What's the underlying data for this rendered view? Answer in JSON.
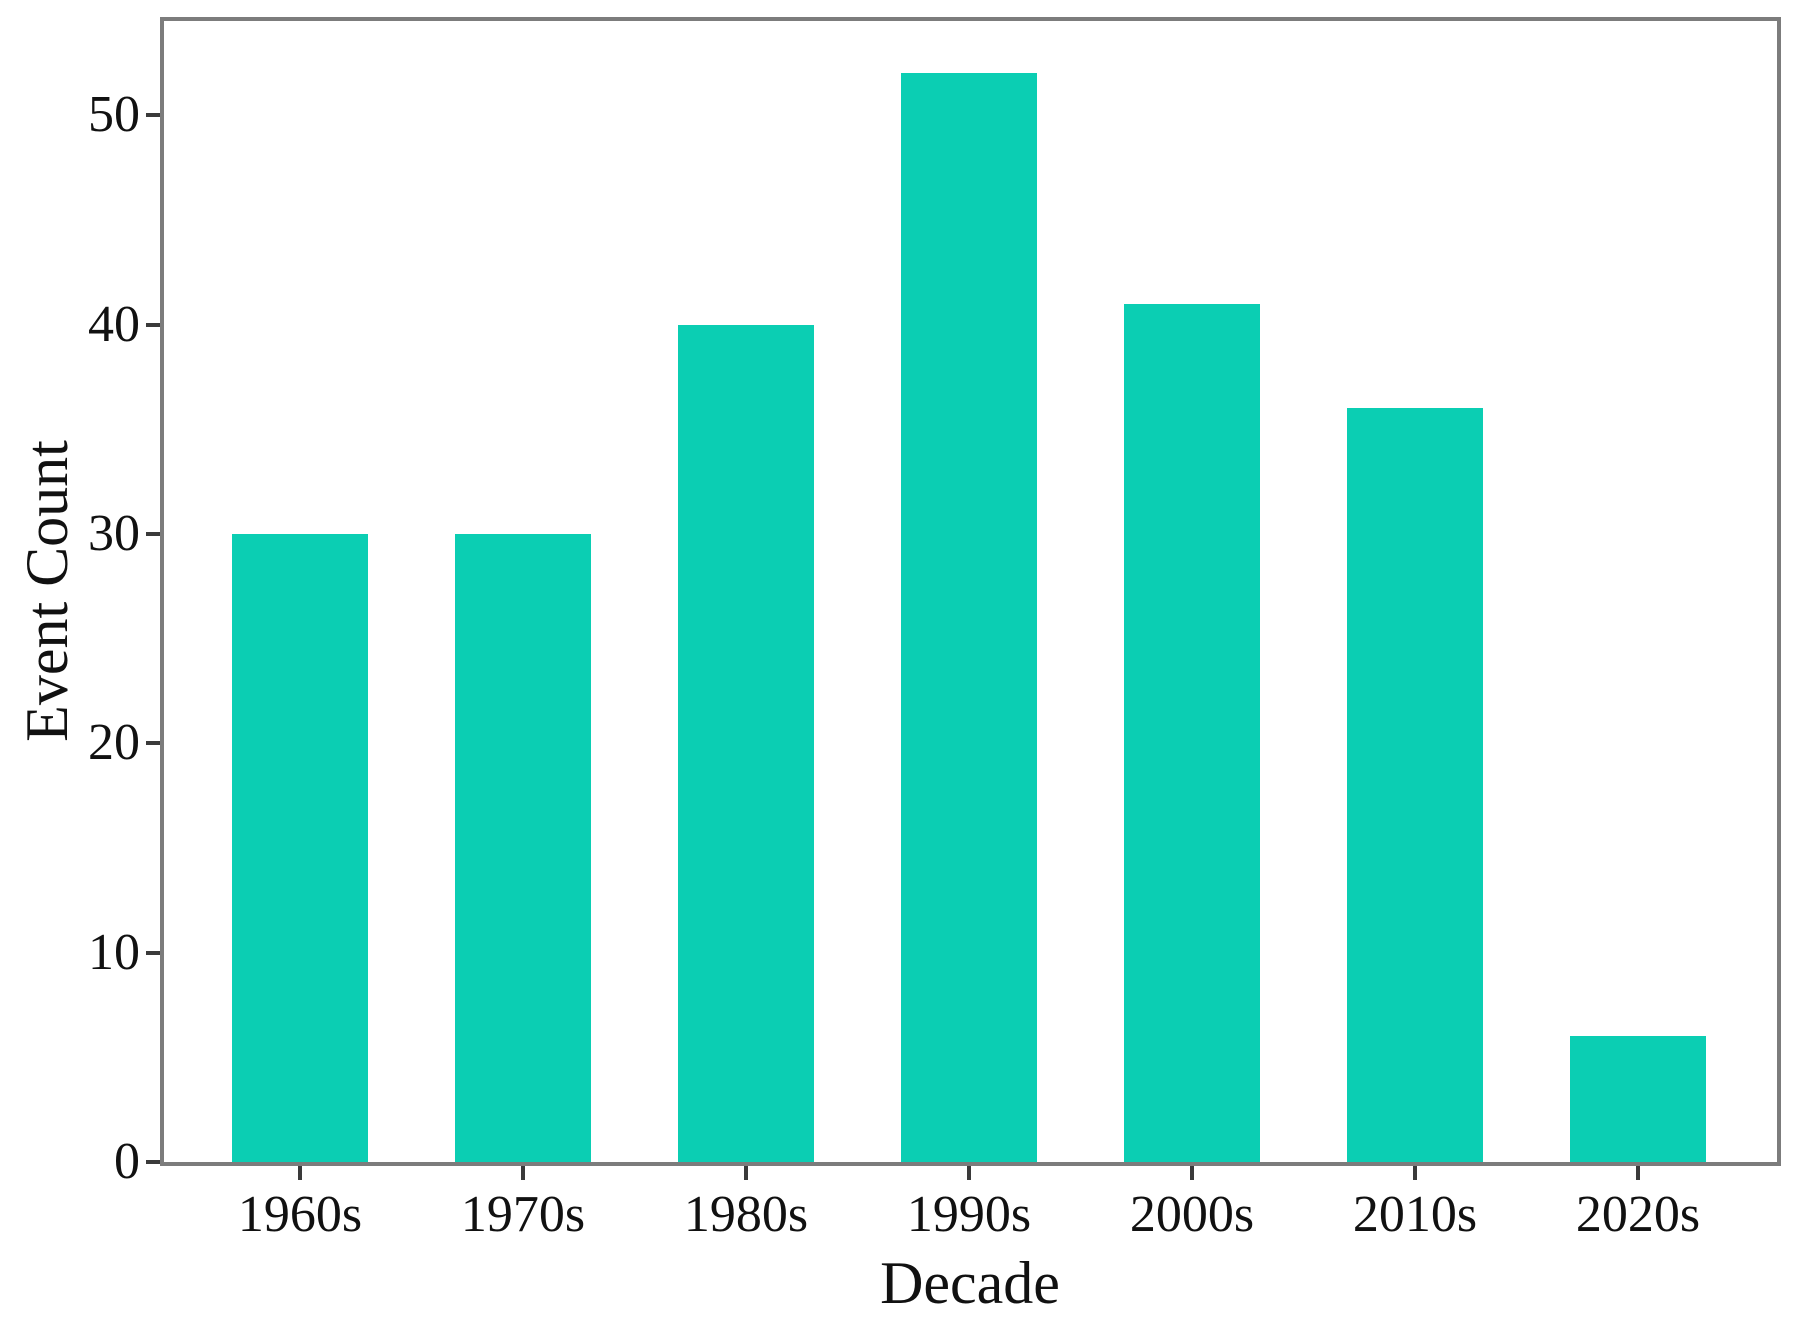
{
  "chart_data": {
    "type": "bar",
    "title": "",
    "xlabel": "Decade",
    "ylabel": "Event Count",
    "categories": [
      "1960s",
      "1970s",
      "1980s",
      "1990s",
      "2000s",
      "2010s",
      "2020s"
    ],
    "values": [
      30,
      30,
      40,
      52,
      41,
      36,
      6
    ],
    "ylim": [
      0,
      54.5
    ],
    "yticks": [
      0,
      10,
      20,
      30,
      40,
      50
    ],
    "grid": false,
    "legend": "none",
    "colors": {
      "bar": "#0bceb3",
      "axis_frame": "#7c7c7c",
      "tick": "#3a3a3a",
      "text": "#111111",
      "background": "#ffffff"
    }
  }
}
